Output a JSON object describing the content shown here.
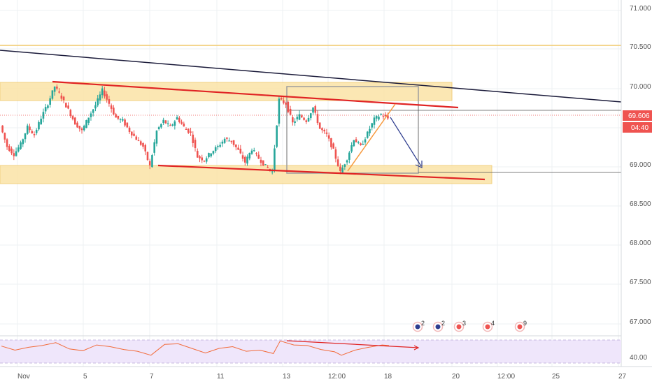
{
  "colors": {
    "up": "#26a69a",
    "down": "#ef5350",
    "zone": "#fbe3a6",
    "zone_border": "#f0c96a",
    "red_line": "#e02424",
    "dark_line": "#1b1b3a",
    "orange_line": "#f79a3e",
    "arrow": "#2f3e8f",
    "rsi_line": "#f26b3a",
    "rsi_bg": "#efe6fb",
    "price_tag": "#ef5350",
    "grid": "#eef0f3"
  },
  "chart_data": {
    "type": "candlestick",
    "y_axis": {
      "ticks": [
        "71.000",
        "70.500",
        "70.000",
        "69.000",
        "68.500",
        "68.000",
        "67.500",
        "67.000"
      ],
      "range": [
        66.75,
        71.1
      ]
    },
    "x_axis": {
      "ticks": [
        "Nov",
        "5",
        "7",
        "11",
        "13",
        "12:00",
        "18",
        "20",
        "12:00",
        "25",
        "27"
      ]
    },
    "last_price": "69.606",
    "countdown": "04:40",
    "price_series": [
      {
        "x": 0.0,
        "y": 69.52
      },
      {
        "x": 0.3,
        "y": 69.25
      },
      {
        "x": 0.6,
        "y": 69.15
      },
      {
        "x": 0.9,
        "y": 69.28
      },
      {
        "x": 1.2,
        "y": 69.5
      },
      {
        "x": 1.5,
        "y": 69.4
      },
      {
        "x": 1.8,
        "y": 69.62
      },
      {
        "x": 2.1,
        "y": 69.8
      },
      {
        "x": 2.4,
        "y": 70.02
      },
      {
        "x": 2.7,
        "y": 69.88
      },
      {
        "x": 3.0,
        "y": 69.72
      },
      {
        "x": 3.3,
        "y": 69.55
      },
      {
        "x": 3.6,
        "y": 69.45
      },
      {
        "x": 3.9,
        "y": 69.63
      },
      {
        "x": 4.2,
        "y": 69.78
      },
      {
        "x": 4.5,
        "y": 69.97
      },
      {
        "x": 4.8,
        "y": 69.8
      },
      {
        "x": 5.1,
        "y": 69.62
      },
      {
        "x": 5.4,
        "y": 69.58
      },
      {
        "x": 5.7,
        "y": 69.45
      },
      {
        "x": 6.0,
        "y": 69.35
      },
      {
        "x": 6.3,
        "y": 69.25
      },
      {
        "x": 6.6,
        "y": 69.0
      },
      {
        "x": 6.9,
        "y": 69.45
      },
      {
        "x": 7.2,
        "y": 69.58
      },
      {
        "x": 7.5,
        "y": 69.5
      },
      {
        "x": 7.8,
        "y": 69.62
      },
      {
        "x": 8.1,
        "y": 69.5
      },
      {
        "x": 8.4,
        "y": 69.42
      },
      {
        "x": 8.7,
        "y": 69.12
      },
      {
        "x": 9.0,
        "y": 69.08
      },
      {
        "x": 9.3,
        "y": 69.18
      },
      {
        "x": 9.6,
        "y": 69.25
      },
      {
        "x": 9.9,
        "y": 69.35
      },
      {
        "x": 10.2,
        "y": 69.32
      },
      {
        "x": 10.5,
        "y": 69.2
      },
      {
        "x": 10.8,
        "y": 69.05
      },
      {
        "x": 11.1,
        "y": 69.22
      },
      {
        "x": 11.4,
        "y": 69.1
      },
      {
        "x": 11.7,
        "y": 69.0
      },
      {
        "x": 12.0,
        "y": 68.93
      },
      {
        "x": 12.3,
        "y": 69.85
      },
      {
        "x": 12.6,
        "y": 69.8
      },
      {
        "x": 12.9,
        "y": 69.55
      },
      {
        "x": 13.2,
        "y": 69.65
      },
      {
        "x": 13.5,
        "y": 69.58
      },
      {
        "x": 13.8,
        "y": 69.75
      },
      {
        "x": 14.1,
        "y": 69.48
      },
      {
        "x": 14.4,
        "y": 69.4
      },
      {
        "x": 14.7,
        "y": 69.2
      },
      {
        "x": 15.0,
        "y": 68.92
      },
      {
        "x": 15.3,
        "y": 69.1
      },
      {
        "x": 15.6,
        "y": 69.35
      },
      {
        "x": 15.9,
        "y": 69.25
      },
      {
        "x": 16.2,
        "y": 69.42
      },
      {
        "x": 16.5,
        "y": 69.6
      },
      {
        "x": 16.8,
        "y": 69.66
      },
      {
        "x": 17.1,
        "y": 69.61
      }
    ],
    "rsi_series": [
      {
        "x": 0.0,
        "y": 54
      },
      {
        "x": 0.6,
        "y": 47
      },
      {
        "x": 1.2,
        "y": 52
      },
      {
        "x": 1.8,
        "y": 55
      },
      {
        "x": 2.4,
        "y": 60
      },
      {
        "x": 3.0,
        "y": 49
      },
      {
        "x": 3.6,
        "y": 46
      },
      {
        "x": 4.2,
        "y": 56
      },
      {
        "x": 4.8,
        "y": 53
      },
      {
        "x": 5.4,
        "y": 48
      },
      {
        "x": 6.0,
        "y": 45
      },
      {
        "x": 6.6,
        "y": 38
      },
      {
        "x": 7.2,
        "y": 57
      },
      {
        "x": 7.8,
        "y": 58
      },
      {
        "x": 8.4,
        "y": 50
      },
      {
        "x": 9.0,
        "y": 42
      },
      {
        "x": 9.6,
        "y": 50
      },
      {
        "x": 10.2,
        "y": 53
      },
      {
        "x": 10.8,
        "y": 45
      },
      {
        "x": 11.4,
        "y": 47
      },
      {
        "x": 12.0,
        "y": 41
      },
      {
        "x": 12.3,
        "y": 63
      },
      {
        "x": 12.9,
        "y": 56
      },
      {
        "x": 13.5,
        "y": 55
      },
      {
        "x": 14.1,
        "y": 48
      },
      {
        "x": 14.7,
        "y": 44
      },
      {
        "x": 15.0,
        "y": 38
      },
      {
        "x": 15.6,
        "y": 47
      },
      {
        "x": 16.2,
        "y": 52
      },
      {
        "x": 16.8,
        "y": 56
      },
      {
        "x": 17.1,
        "y": 55
      }
    ],
    "rsi_axis": {
      "ticks": [
        "40.00"
      ],
      "range": [
        30,
        70
      ]
    },
    "event_badges": [
      "2",
      "2",
      "3",
      "4",
      "9"
    ]
  }
}
